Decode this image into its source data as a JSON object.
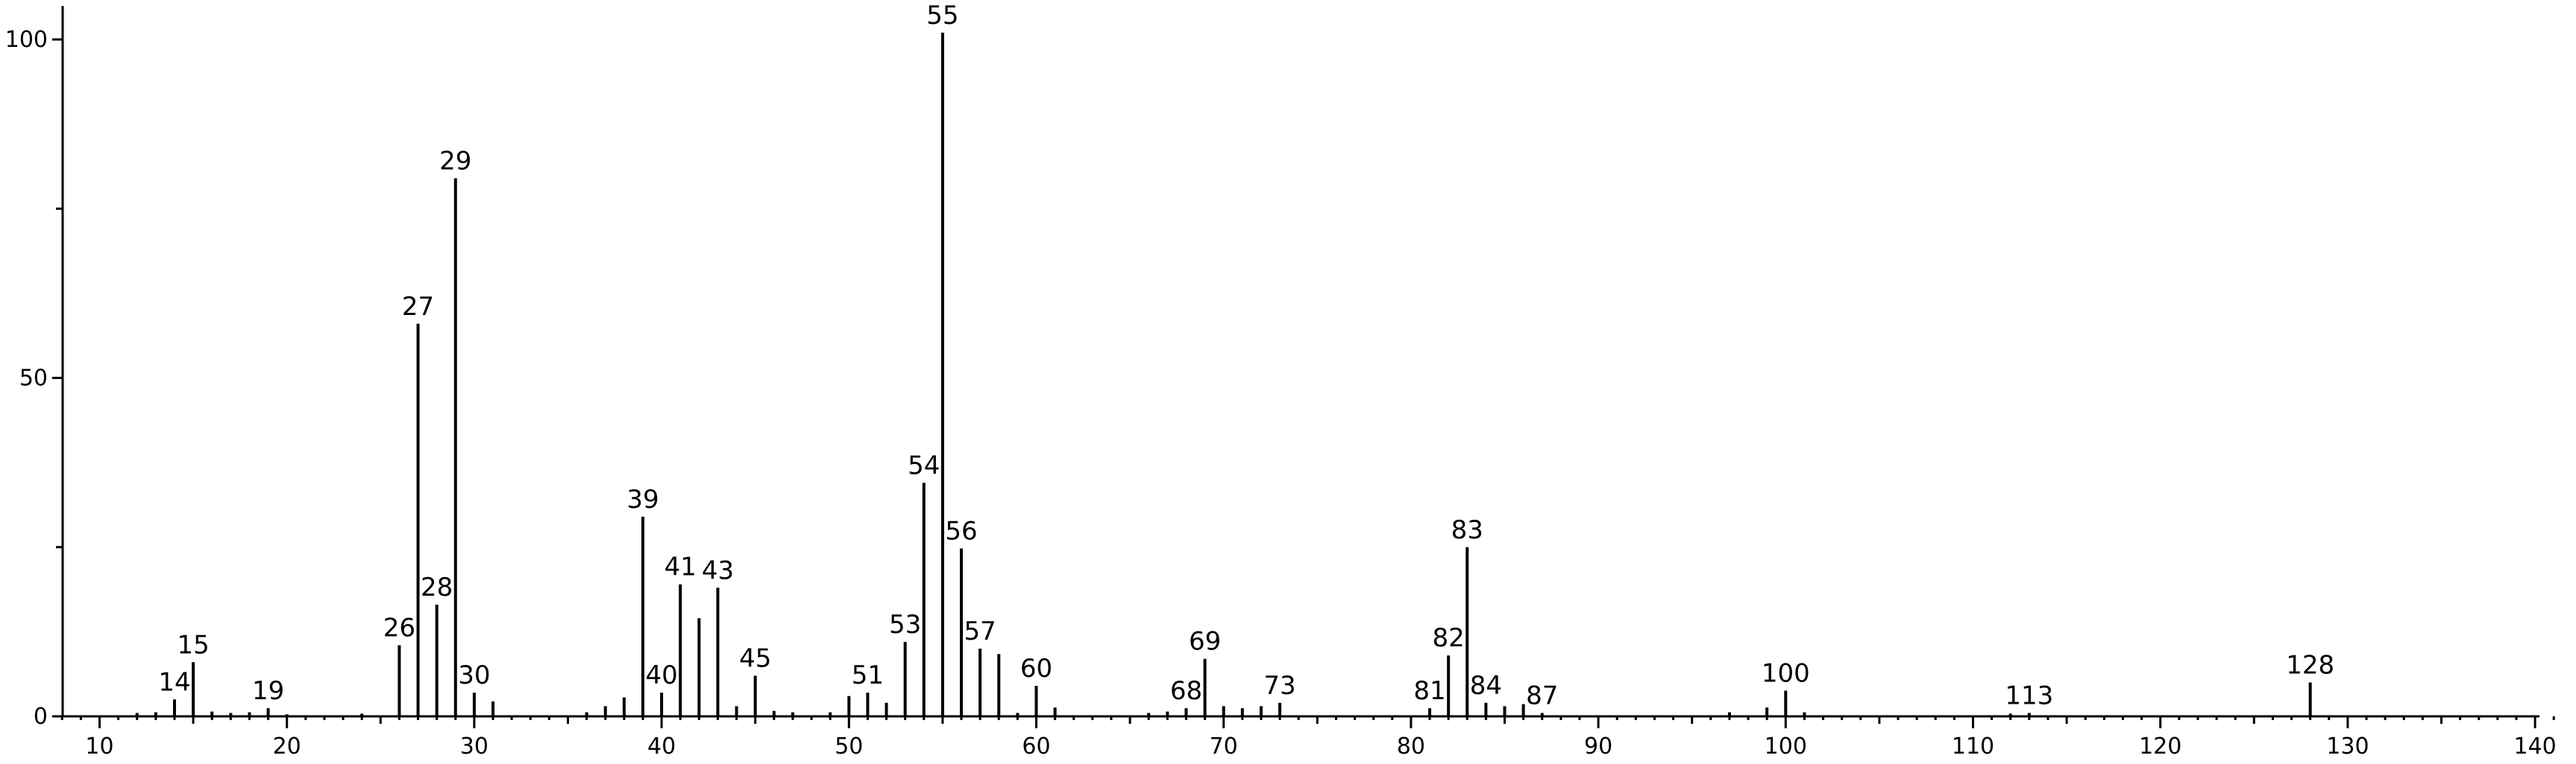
{
  "chart_data": {
    "type": "bar",
    "title": "",
    "xlabel": "",
    "ylabel": "",
    "xlim": [
      8,
      141
    ],
    "ylim": [
      0,
      103
    ],
    "grid": false,
    "x_ticks": [
      "10",
      "20",
      "30",
      "40",
      "50",
      "60",
      "70",
      "80",
      "90",
      "100",
      "110",
      "120",
      "130",
      "140"
    ],
    "y_ticks": [
      "0",
      "50",
      "100"
    ],
    "series": [
      {
        "x": [
          12,
          13,
          14,
          15,
          16,
          17,
          18,
          19,
          20,
          24,
          26,
          27,
          28,
          29,
          30,
          31,
          36,
          37,
          38,
          39,
          40,
          41,
          42,
          43,
          44,
          45,
          46,
          47,
          49,
          50,
          51,
          52,
          53,
          54,
          55,
          56,
          57,
          58,
          59,
          60,
          61,
          66,
          67,
          68,
          69,
          70,
          71,
          72,
          73,
          81,
          82,
          83,
          84,
          85,
          86,
          87,
          97,
          99,
          100,
          101,
          112,
          113,
          128
        ],
        "values": [
          0.5,
          0.6,
          2.5,
          8,
          0.7,
          0.5,
          0.6,
          1.2,
          0.3,
          0.4,
          10.5,
          58,
          16.5,
          79.5,
          3.5,
          2.2,
          0.6,
          1.5,
          2.8,
          29.5,
          3.5,
          19.5,
          14.5,
          19,
          1.5,
          6,
          0.8,
          0.6,
          0.6,
          3,
          3.5,
          2,
          11,
          34.5,
          101,
          24.8,
          10,
          9.2,
          0.5,
          4.5,
          1.3,
          0.5,
          0.7,
          1.2,
          8.5,
          1.5,
          1.2,
          1.5,
          2,
          1.2,
          9,
          25,
          2,
          1.5,
          1.8,
          0.5,
          0.6,
          1.3,
          3.8,
          0.6,
          0.4,
          0.5,
          5
        ]
      }
    ],
    "peak_labels": [
      {
        "x": 14,
        "label": "14"
      },
      {
        "x": 15,
        "label": "15"
      },
      {
        "x": 19,
        "label": "19"
      },
      {
        "x": 26,
        "label": "26"
      },
      {
        "x": 27,
        "label": "27"
      },
      {
        "x": 28,
        "label": "28"
      },
      {
        "x": 29,
        "label": "29"
      },
      {
        "x": 30,
        "label": "30"
      },
      {
        "x": 39,
        "label": "39"
      },
      {
        "x": 40,
        "label": "40"
      },
      {
        "x": 41,
        "label": "41"
      },
      {
        "x": 43,
        "label": "43"
      },
      {
        "x": 45,
        "label": "45"
      },
      {
        "x": 51,
        "label": "51"
      },
      {
        "x": 53,
        "label": "53"
      },
      {
        "x": 54,
        "label": "54"
      },
      {
        "x": 55,
        "label": "55"
      },
      {
        "x": 56,
        "label": "56"
      },
      {
        "x": 57,
        "label": "57"
      },
      {
        "x": 60,
        "label": "60"
      },
      {
        "x": 68,
        "label": "68"
      },
      {
        "x": 69,
        "label": "69"
      },
      {
        "x": 73,
        "label": "73"
      },
      {
        "x": 81,
        "label": "81"
      },
      {
        "x": 82,
        "label": "82"
      },
      {
        "x": 83,
        "label": "83"
      },
      {
        "x": 84,
        "label": "84"
      },
      {
        "x": 87,
        "label": "87"
      },
      {
        "x": 100,
        "label": "100"
      },
      {
        "x": 113,
        "label": "113"
      },
      {
        "x": 128,
        "label": "128"
      }
    ]
  }
}
